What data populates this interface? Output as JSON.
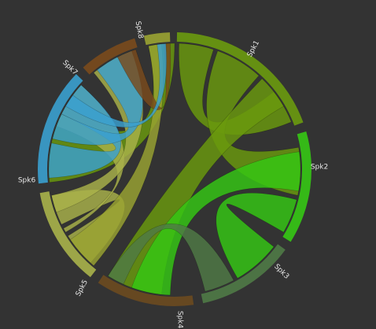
{
  "chart_data": {
    "type": "chord",
    "groups": [
      {
        "id": "spk1",
        "label": "Spk1",
        "color": "#6a9a0e"
      },
      {
        "id": "spk2",
        "label": "Spk2",
        "color": "#35c814"
      },
      {
        "id": "spk3",
        "label": "Spk3",
        "color": "#4f7a46"
      },
      {
        "id": "spk4",
        "label": "Spk4",
        "color": "#6b4a1f"
      },
      {
        "id": "spk5",
        "label": "Spk5",
        "color": "#a9b24a"
      },
      {
        "id": "spk6",
        "label": "Spk6",
        "color": "#3aa0cf"
      },
      {
        "id": "spk7",
        "label": "Spk7",
        "color": "#7a4a1c"
      },
      {
        "id": "spk8",
        "label": "Spk8",
        "color": "#9aa332"
      }
    ],
    "chords": [
      {
        "source": "spk1",
        "target": "spk1",
        "color": "#6a9a0e"
      },
      {
        "source": "spk1",
        "target": "spk2",
        "color": "#6a9a0e"
      },
      {
        "source": "spk1",
        "target": "spk4",
        "color": "#6a9a0e"
      },
      {
        "source": "spk1",
        "target": "spk6",
        "color": "#6a9a0e"
      },
      {
        "source": "spk2",
        "target": "spk3",
        "color": "#35c814"
      },
      {
        "source": "spk2",
        "target": "spk4",
        "color": "#35c814"
      },
      {
        "source": "spk3",
        "target": "spk4",
        "color": "#4f7a46"
      },
      {
        "source": "spk5",
        "target": "spk5",
        "color": "#a9b24a"
      },
      {
        "source": "spk5",
        "target": "spk6",
        "color": "#a9b24a"
      },
      {
        "source": "spk5",
        "target": "spk7",
        "color": "#a9b24a"
      },
      {
        "source": "spk6",
        "target": "spk6",
        "color": "#3aa0cf"
      },
      {
        "source": "spk6",
        "target": "spk7",
        "color": "#3aa0cf"
      },
      {
        "source": "spk8",
        "target": "spk8",
        "color": "#9aa332"
      },
      {
        "source": "spk8",
        "target": "spk7",
        "color": "#7a4a1c"
      },
      {
        "source": "spk8",
        "target": "spk6",
        "color": "#3aa0cf"
      }
    ]
  }
}
